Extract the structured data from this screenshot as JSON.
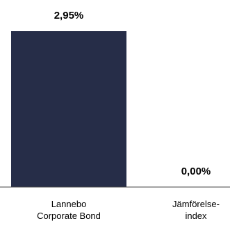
{
  "chart_data": {
    "type": "bar",
    "categories": [
      [
        "Lannebo",
        "Corporate Bond"
      ],
      [
        "Jämförelse-",
        "index"
      ]
    ],
    "values": [
      2.95,
      0.0
    ],
    "value_labels": [
      "2,95%",
      "0,00%"
    ],
    "ylim": [
      0,
      2.95
    ],
    "colors": {
      "bar": "#262d48",
      "axis": "#444444"
    },
    "grid": false
  }
}
